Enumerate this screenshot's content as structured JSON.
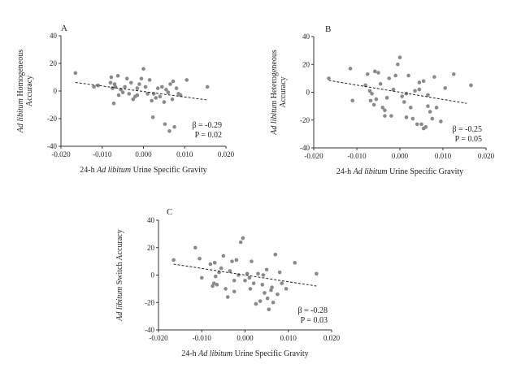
{
  "chart_data": [
    {
      "type": "scatter",
      "panel": "A",
      "ylabel_italic": "Ad libitum",
      "ylabel_rest": " Homogeneous",
      "ylabel_line2": "Accuracy",
      "xlabel_prefix": "24-h ",
      "xlabel_italic": "Ad libitum",
      "xlabel_suffix": " Urine Specific Gravity",
      "xlim": [
        -0.02,
        0.02
      ],
      "ylim": [
        -40,
        40
      ],
      "xticks": [
        -0.02,
        -0.01,
        0.0,
        0.01,
        0.02
      ],
      "xtick_labels": [
        "-0.020",
        "-0.010",
        "0.000",
        "0.010",
        "0.020"
      ],
      "yticks": [
        -40,
        -20,
        0,
        20,
        40
      ],
      "ytick_labels": [
        "-40",
        "-20",
        "0",
        "20",
        "40"
      ],
      "beta_text": "β = -0.29",
      "p_text": "P = 0.02",
      "trend": {
        "x": [
          -0.0165,
          0.0155
        ],
        "y": [
          6.2,
          -6.5
        ]
      },
      "points": {
        "x": [
          -0.0165,
          -0.012,
          -0.011,
          -0.008,
          -0.0078,
          -0.0075,
          -0.007,
          -0.0068,
          -0.0062,
          -0.006,
          -0.0055,
          -0.005,
          -0.0045,
          -0.004,
          -0.0035,
          -0.003,
          -0.0025,
          -0.002,
          -0.0015,
          -0.001,
          -0.0005,
          0.0,
          0.0005,
          0.001,
          0.0015,
          0.002,
          0.0025,
          0.003,
          0.0035,
          0.004,
          0.0045,
          0.005,
          0.0055,
          0.006,
          0.0065,
          0.007,
          0.0075,
          0.008,
          0.0085,
          0.009,
          0.0105,
          0.0155,
          -0.0072,
          -0.0015,
          0.0052,
          0.0072,
          0.0023,
          0.0063
        ],
        "y": [
          13,
          3,
          4,
          6,
          10,
          2,
          5,
          3,
          11,
          -3,
          1,
          -1,
          3,
          9,
          -2,
          6,
          -6,
          -4,
          2,
          5,
          9,
          16,
          3,
          -2,
          8,
          -7,
          -2,
          -5,
          2,
          -4,
          3,
          -8,
          1,
          -1,
          5,
          -6,
          -26,
          2,
          -2,
          -3,
          8,
          3,
          -9,
          -3,
          -24,
          7,
          -19,
          -29
        ]
      }
    },
    {
      "type": "scatter",
      "panel": "B",
      "ylabel_italic": "Ad libitum",
      "ylabel_rest": " Heterogeneous",
      "ylabel_line2": "Accuracy",
      "xlabel_prefix": "24-h ",
      "xlabel_italic": "Ad libitum",
      "xlabel_suffix": " Urine Specific Gravity",
      "xlim": [
        -0.02,
        0.02
      ],
      "ylim": [
        -40,
        40
      ],
      "xticks": [
        -0.02,
        -0.01,
        0.0,
        0.01,
        0.02
      ],
      "xtick_labels": [
        "-0.020",
        "-0.010",
        "0.000",
        "0.010",
        "0.020"
      ],
      "yticks": [
        -40,
        -20,
        0,
        20,
        40
      ],
      "ytick_labels": [
        "-40",
        "-20",
        "0",
        "20",
        "40"
      ],
      "beta_text": "β = -0.25",
      "p_text": "P = 0.05",
      "trend": {
        "x": [
          -0.0165,
          0.0155
        ],
        "y": [
          8.5,
          -8.0
        ]
      },
      "points": {
        "x": [
          -0.0165,
          -0.0115,
          -0.011,
          -0.008,
          -0.0075,
          -0.007,
          -0.0068,
          -0.0065,
          -0.006,
          -0.0058,
          -0.005,
          -0.0045,
          -0.004,
          -0.0035,
          -0.003,
          -0.0025,
          -0.002,
          -0.0015,
          -0.001,
          -0.0005,
          0.0,
          0.0005,
          0.001,
          0.0015,
          0.002,
          0.0025,
          0.003,
          0.0035,
          0.004,
          0.0045,
          0.005,
          0.0055,
          0.006,
          0.0065,
          0.007,
          0.0075,
          0.008,
          0.0085,
          0.0095,
          0.0105,
          0.0125,
          0.0165,
          -0.0055,
          0.0015,
          0.0045,
          0.0065,
          -0.0035,
          0.0055
        ],
        "y": [
          10,
          17,
          -6,
          5,
          13,
          1,
          -6,
          -1,
          -9,
          15,
          14,
          6,
          -11,
          -17,
          -4,
          10,
          -17,
          2,
          12,
          20,
          25,
          -3,
          -7,
          -1,
          12,
          -11,
          -19,
          1,
          -23,
          7,
          -23,
          8,
          -25,
          -10,
          -14,
          -19,
          11,
          -11,
          -21,
          3,
          13,
          5,
          -5,
          -18,
          2,
          -2,
          -13,
          -26
        ]
      }
    },
    {
      "type": "scatter",
      "panel": "C",
      "ylabel_italic": "Ad libitum",
      "ylabel_rest": " Switch Accuracy",
      "ylabel_line2": "",
      "xlabel_prefix": "24-h ",
      "xlabel_italic": "Ad libitum",
      "xlabel_suffix": " Urine Specific Gravity",
      "xlim": [
        -0.02,
        0.02
      ],
      "ylim": [
        -40,
        40
      ],
      "xticks": [
        -0.02,
        -0.01,
        0.0,
        0.01,
        0.02
      ],
      "xtick_labels": [
        "-0.020",
        "-0.010",
        "0.000",
        "0.010",
        "0.020"
      ],
      "yticks": [
        -40,
        -20,
        0,
        20,
        40
      ],
      "ytick_labels": [
        "-40",
        "-20",
        "0",
        "20",
        "40"
      ],
      "beta_text": "β = -0.28",
      "p_text": "P = 0.03",
      "trend": {
        "x": [
          -0.0165,
          0.0165
        ],
        "y": [
          8.0,
          -8.0
        ]
      },
      "points": {
        "x": [
          -0.0165,
          -0.0115,
          -0.0105,
          -0.01,
          -0.008,
          -0.0075,
          -0.007,
          -0.0068,
          -0.0065,
          -0.006,
          -0.0055,
          -0.005,
          -0.0045,
          -0.004,
          -0.0035,
          -0.003,
          -0.0025,
          -0.002,
          -0.0015,
          -0.001,
          -0.0005,
          0.0,
          0.0005,
          0.001,
          0.0015,
          0.002,
          0.0025,
          0.003,
          0.0035,
          0.004,
          0.0045,
          0.005,
          0.0055,
          0.006,
          0.0065,
          0.007,
          0.0075,
          0.008,
          0.0085,
          0.0095,
          0.0115,
          0.0165,
          -0.0072,
          0.0012,
          0.0042,
          0.0062,
          -0.0025,
          0.0052
        ],
        "y": [
          11,
          20,
          12,
          -2,
          8,
          -8,
          9,
          -1,
          -7,
          2,
          5,
          14,
          -10,
          -16,
          3,
          10,
          -4,
          11,
          0,
          24,
          27,
          -4,
          1,
          -2,
          10,
          -6,
          -21,
          1,
          -19,
          -7,
          -13,
          4,
          -25,
          -11,
          -20,
          15,
          -14,
          2,
          -6,
          -10,
          9,
          1,
          -6,
          -10,
          0,
          -9,
          -12,
          -17
        ]
      }
    }
  ]
}
